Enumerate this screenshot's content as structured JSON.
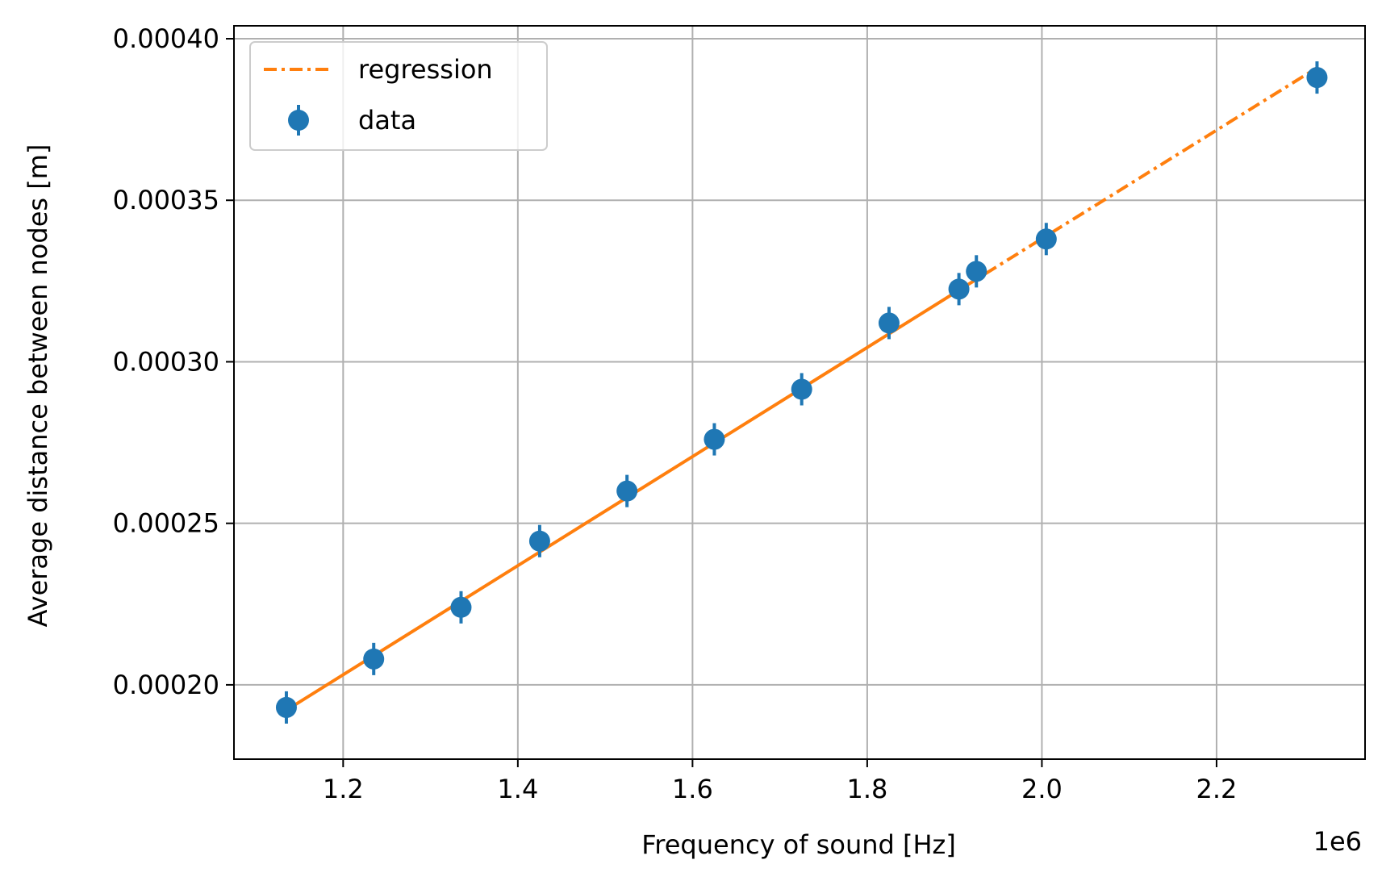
{
  "chart_data": {
    "type": "scatter",
    "title": "",
    "xlabel": "Frequency of sound [Hz]",
    "ylabel": "Average distance between nodes [m]",
    "x_offset_label": "1e6",
    "xlim": [
      1075000,
      2370000
    ],
    "ylim": [
      0.000177,
      0.000404
    ],
    "x_ticks": [
      1200000,
      1400000,
      1600000,
      1800000,
      2000000,
      2200000
    ],
    "x_tick_labels": [
      "1.2",
      "1.4",
      "1.6",
      "1.8",
      "2.0",
      "2.2"
    ],
    "y_ticks": [
      0.0002,
      0.00025,
      0.0003,
      0.00035,
      0.0004
    ],
    "y_tick_labels": [
      "0.00020",
      "0.00025",
      "0.00030",
      "0.00035",
      "0.00040"
    ],
    "grid": true,
    "legend_position": "top-left",
    "series": [
      {
        "name": "regression",
        "kind": "line",
        "color": "#ff7f0e",
        "solid_segment": {
          "x": [
            1140000,
            1910000
          ],
          "y": [
            0.000193,
            0.000323
          ]
        },
        "dashdot_segment": {
          "x": [
            1910000,
            2315000
          ],
          "y": [
            0.000323,
            0.000391
          ]
        }
      },
      {
        "name": "data",
        "kind": "errorbar",
        "color": "#1f77b4",
        "x": [
          1135000,
          1235000,
          1335000,
          1425000,
          1525000,
          1625000,
          1725000,
          1825000,
          1905000,
          1925000,
          2005000,
          2315000
        ],
        "y": [
          0.000193,
          0.000208,
          0.000224,
          0.0002445,
          0.00026,
          0.000276,
          0.0002915,
          0.000312,
          0.0003225,
          0.000328,
          0.000338,
          0.000388
        ],
        "yerr": 5e-06
      }
    ]
  }
}
